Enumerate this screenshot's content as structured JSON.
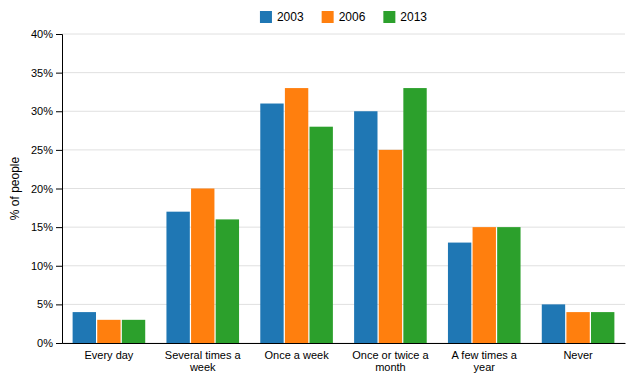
{
  "chart_data": {
    "type": "bar",
    "y_label": "% of people",
    "categories": [
      "Every day",
      "Several times a\nweek",
      "Once a week",
      "Once or twice a\nmonth",
      "A few times a\nyear",
      "Never"
    ],
    "series": [
      {
        "name": "2003",
        "values": [
          4,
          17,
          31,
          30,
          13,
          5
        ]
      },
      {
        "name": "2006",
        "values": [
          3,
          20,
          33,
          25,
          15,
          4
        ]
      },
      {
        "name": "2013",
        "values": [
          3,
          16,
          28,
          33,
          15,
          4
        ]
      }
    ],
    "ylim": [
      0,
      40
    ],
    "yticks": [
      {
        "value": 0,
        "label": "0%"
      },
      {
        "value": 5,
        "label": "5%"
      },
      {
        "value": 10,
        "label": "10%"
      },
      {
        "value": 15,
        "label": "15%"
      },
      {
        "value": 20,
        "label": "20%"
      },
      {
        "value": 25,
        "label": "25%"
      },
      {
        "value": 30,
        "label": "30%"
      },
      {
        "value": 35,
        "label": "35%"
      },
      {
        "value": 40,
        "label": "40%"
      }
    ],
    "grid": true,
    "legend": "upper center"
  }
}
